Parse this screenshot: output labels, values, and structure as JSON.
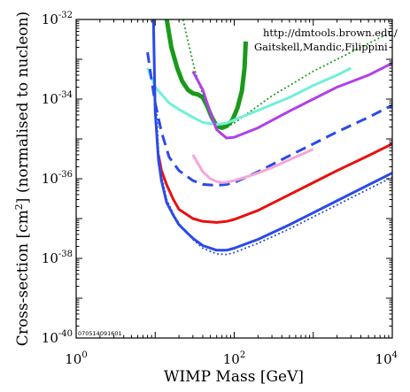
{
  "chart_data": {
    "type": "line",
    "xscale": "log",
    "yscale": "log",
    "xlim": [
      1,
      10000
    ],
    "ylim": [
      1e-40,
      1e-32
    ],
    "grid": false,
    "legend": "none",
    "xlabel": "WIMP Mass [GeV]",
    "ylabel": {
      "pre": "Cross-section [cm",
      "sup": "2",
      "post": "] (normalised to nucleon)"
    },
    "x_ticks": [
      {
        "base": "10",
        "exp": "0",
        "value": 1
      },
      {
        "base": "10",
        "exp": "2",
        "value": 100
      },
      {
        "base": "10",
        "exp": "4",
        "value": 10000
      }
    ],
    "y_ticks": [
      {
        "base": "10",
        "exp": "-32",
        "value": 1e-32
      },
      {
        "base": "10",
        "exp": "-34",
        "value": 1e-34
      },
      {
        "base": "10",
        "exp": "-36",
        "value": 1e-36
      },
      {
        "base": "10",
        "exp": "-38",
        "value": 1e-38
      },
      {
        "base": "10",
        "exp": "-40",
        "value": 1e-40
      }
    ],
    "annotations": {
      "source_line1": "http://dmtools.brown.edu/",
      "source_line2": "Gaitskell,Mandic,Filippini",
      "plot_id": "070514091601"
    },
    "series": [
      {
        "color": "#1a9a1a",
        "style": "dotted",
        "width": 2,
        "x": [
          20,
          25,
          32,
          40,
          50,
          60,
          70,
          80,
          100,
          150,
          300,
          1000,
          3000,
          10000
        ],
        "y": [
          3e-32,
          4e-33,
          5e-34,
          1.3e-34,
          4e-35,
          2.2e-35,
          1.9e-35,
          2e-35,
          2.5e-35,
          4.5e-35,
          1.2e-34,
          5e-34,
          1.5e-33,
          5e-33
        ]
      },
      {
        "color": "#1a9a1a",
        "style": "solid",
        "width": 5,
        "x": [
          14,
          16,
          19,
          22,
          26,
          30,
          35,
          40,
          45,
          52,
          60,
          70,
          80,
          95,
          110,
          125,
          135,
          140
        ],
        "y": [
          1e-32,
          2e-33,
          6e-34,
          2.8e-34,
          1.7e-34,
          1.4e-34,
          1.3e-34,
          1.1e-34,
          7e-35,
          3.5e-35,
          2.1e-35,
          1.9e-35,
          2.1e-35,
          3e-35,
          6e-35,
          1.6e-34,
          6e-34,
          2.8e-33
        ]
      },
      {
        "color": "#70f0d8",
        "style": "solid",
        "width": 3,
        "x": [
          8,
          10,
          15,
          20,
          30,
          40,
          60,
          80,
          100,
          200,
          500,
          1000,
          2000,
          3000
        ],
        "y": [
          6e-34,
          2e-34,
          8e-35,
          5.5e-35,
          3.5e-35,
          2.6e-35,
          2.3e-35,
          2.5e-35,
          3e-35,
          5.2e-35,
          1.1e-34,
          2.2e-34,
          4e-34,
          6e-34
        ]
      },
      {
        "color": "#b040e8",
        "style": "solid",
        "width": 3,
        "x": [
          30,
          40,
          50,
          60,
          80,
          100,
          200,
          500,
          1000,
          2000,
          5000,
          10000
        ],
        "y": [
          5e-34,
          1.7e-34,
          4.5e-35,
          1.7e-35,
          1.05e-35,
          1.1e-35,
          1.9e-35,
          5e-35,
          1e-34,
          2e-34,
          4e-34,
          8e-34
        ]
      },
      {
        "color": "#2a4ae8",
        "style": "dashed",
        "width": 3,
        "x": [
          8,
          9,
          10,
          12,
          15,
          20,
          30,
          40,
          60,
          80,
          100,
          200,
          500,
          1000,
          2000,
          5000,
          10000
        ],
        "y": [
          1.5e-33,
          3e-34,
          8e-35,
          1.5e-35,
          3.5e-36,
          1.6e-36,
          9e-37,
          7.2e-37,
          6.8e-37,
          7.2e-37,
          8e-37,
          1.5e-36,
          3.8e-36,
          7.5e-36,
          1.5e-35,
          3.5e-35,
          7e-35
        ]
      },
      {
        "color": "#f4a6d8",
        "style": "solid",
        "width": 3,
        "x": [
          30,
          40,
          50,
          60,
          70,
          80,
          100,
          150,
          200,
          300,
          500,
          1000
        ],
        "y": [
          4e-36,
          1.5e-36,
          1e-36,
          8.5e-37,
          8e-37,
          8.2e-37,
          9e-37,
          1.15e-36,
          1.4e-36,
          1.9e-36,
          3e-36,
          5.5e-36
        ]
      },
      {
        "color": "#e81010",
        "style": "solid",
        "width": 3,
        "x": [
          11,
          12,
          14,
          17,
          20,
          30,
          40,
          60,
          80,
          100,
          200,
          500,
          1000,
          2000,
          5000,
          10000
        ],
        "y": [
          4e-36,
          1.6e-36,
          7e-37,
          3e-37,
          1.7e-37,
          1e-37,
          8.5e-38,
          8e-38,
          8.5e-38,
          9.5e-38,
          1.6e-37,
          4e-37,
          8e-37,
          1.6e-36,
          3.8e-36,
          7.5e-36
        ]
      },
      {
        "color": "#2a4ae8",
        "style": "solid",
        "width": 3,
        "x": [
          9.5,
          10,
          11,
          12,
          14,
          17,
          20,
          25,
          30,
          40,
          60,
          80,
          100,
          200,
          500,
          1000,
          2000,
          5000,
          10000
        ],
        "y": [
          1e-32,
          5e-35,
          3e-36,
          9e-37,
          2.5e-37,
          1.2e-37,
          7e-38,
          4.5e-38,
          3.2e-38,
          2.1e-38,
          1.6e-38,
          1.6e-38,
          1.8e-38,
          3e-38,
          7e-38,
          1.4e-37,
          2.8e-37,
          7e-37,
          1.4e-36
        ]
      },
      {
        "color": "#2a4ae8",
        "style": "dotted",
        "width": 2,
        "x": [
          10.5,
          11,
          12,
          14,
          17,
          20,
          25,
          30,
          40,
          60,
          80,
          100,
          200,
          500,
          1000,
          2000,
          5000,
          10000
        ],
        "y": [
          4e-35,
          5e-36,
          1.2e-36,
          3e-37,
          1.3e-37,
          7.5e-38,
          4.5e-38,
          3e-38,
          1.8e-38,
          1.3e-38,
          1.25e-38,
          1.4e-38,
          2.4e-38,
          5.5e-38,
          1.1e-37,
          2.2e-37,
          5.5e-37,
          1.1e-36
        ]
      }
    ]
  }
}
